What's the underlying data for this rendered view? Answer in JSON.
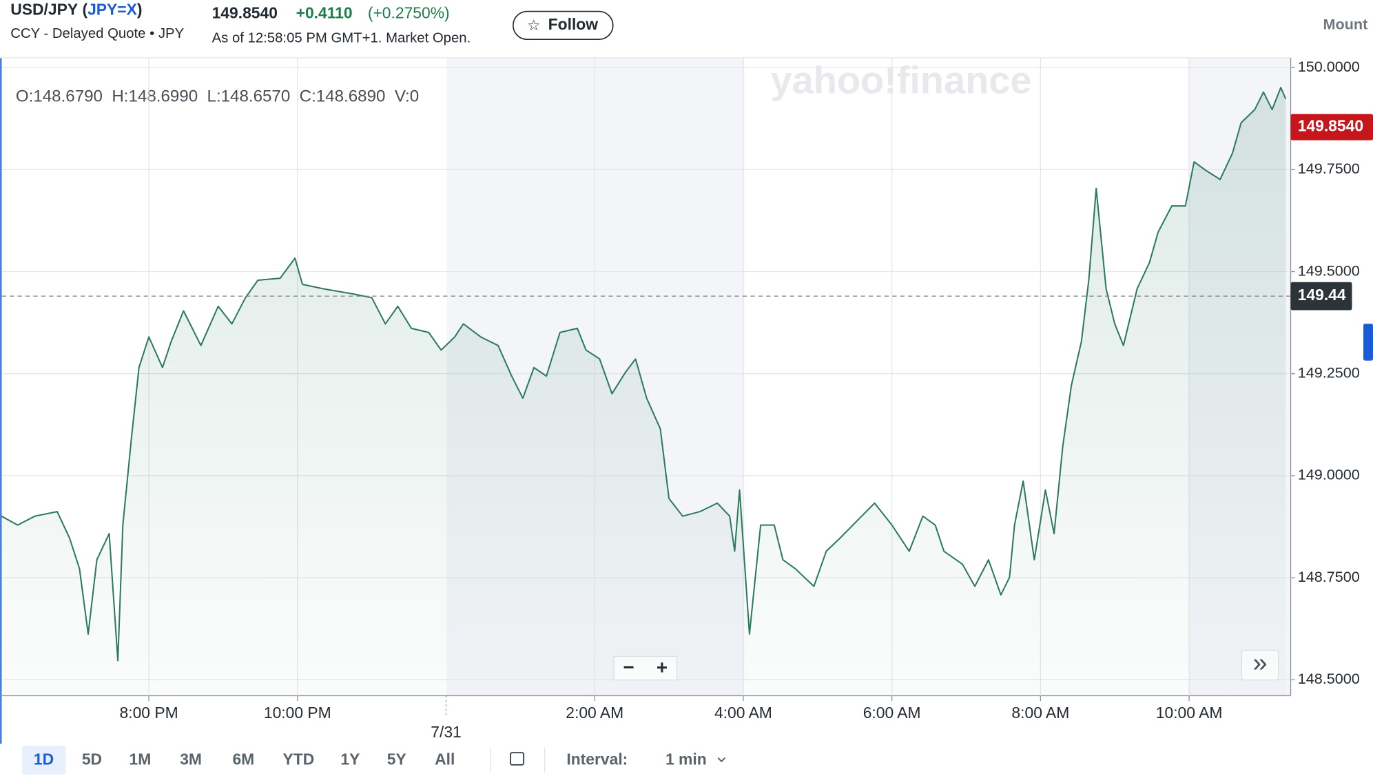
{
  "header": {
    "symbol": "USD/JPY",
    "ticker": "JPY=X",
    "open_paren": "(",
    "close_paren": ")",
    "subtitle": "CCY - Delayed Quote • JPY",
    "price": "149.8540",
    "change": "+0.4110",
    "change_pct": "(+0.2750%)",
    "as_of": "As of 12:58:05 PM GMT+1. Market Open.",
    "follow": "Follow",
    "star": "☆",
    "right_text": "Mount"
  },
  "ohlc": "O:148.6790  H:148.6990  L:148.6570  C:148.6890  V:0",
  "watermark": "yahoo!finance",
  "zoom": {
    "minus": "−",
    "plus": "+"
  },
  "next": "»",
  "ranges": [
    "1D",
    "5D",
    "1M",
    "3M",
    "6M",
    "YTD",
    "1Y",
    "5Y",
    "All"
  ],
  "interval_label": "Interval:",
  "interval": "1 min",
  "chart_data": {
    "type": "line",
    "color": "#2b7a5e",
    "grid": true,
    "x": [
      "6:01 PM",
      "6:14 PM",
      "6:28 PM",
      "6:46 PM",
      "6:56 PM",
      "7:04 PM",
      "7:11 PM",
      "7:18 PM",
      "7:28 PM",
      "7:35 PM",
      "7:39 PM",
      "7:46 PM",
      "7:52 PM",
      "8:00 PM",
      "8:11 PM",
      "8:18 PM",
      "8:28 PM",
      "8:42 PM",
      "8:56 PM",
      "9:07 PM",
      "9:18 PM",
      "9:28 PM",
      "9:46 PM",
      "9:58 PM",
      "10:04 PM",
      "10:21 PM",
      "10:42 PM",
      "11:00 PM",
      "11:11 PM",
      "11:21 PM",
      "11:32 PM",
      "11:46 PM",
      "11:56 PM",
      "12:07 AM",
      "12:14 AM",
      "12:28 AM",
      "12:42 AM",
      "12:53 AM",
      "1:02 AM",
      "1:11 AM",
      "1:21 AM",
      "1:32 AM",
      "1:46 AM",
      "1:53 AM",
      "2:04 AM",
      "2:14 AM",
      "2:25 AM",
      "2:33 AM",
      "2:42 AM",
      "2:53 AM",
      "3:00 AM",
      "3:11 AM",
      "3:25 AM",
      "3:39 AM",
      "3:49 AM",
      "3:53 AM",
      "3:57 AM",
      "4:05 AM",
      "4:14 AM",
      "4:25 AM",
      "4:32 AM",
      "4:42 AM",
      "4:57 AM",
      "5:07 AM",
      "5:18 AM",
      "5:32 AM",
      "5:46 AM",
      "6:00 AM",
      "6:14 AM",
      "6:25 AM",
      "6:35 AM",
      "6:42 AM",
      "6:57 AM",
      "7:07 AM",
      "7:18 AM",
      "7:28 AM",
      "7:35 AM",
      "7:39 AM",
      "7:46 AM",
      "7:55 AM",
      "8:04 AM",
      "8:11 AM",
      "8:18 AM",
      "8:25 AM",
      "8:33 AM",
      "8:39 AM",
      "8:45 AM",
      "8:53 AM",
      "9:00 AM",
      "9:07 AM",
      "9:18 AM",
      "9:28 AM",
      "9:35 AM",
      "9:46 AM",
      "9:57 AM",
      "10:04 AM",
      "10:14 AM",
      "10:25 AM",
      "10:35 AM",
      "10:42 AM",
      "10:53 AM",
      "11:00 AM",
      "11:07 AM",
      "11:14 AM",
      "11:18 AM"
    ],
    "values": [
      148.901,
      148.879,
      148.901,
      148.912,
      148.847,
      148.772,
      148.612,
      148.794,
      148.858,
      148.547,
      148.879,
      149.094,
      149.265,
      149.34,
      149.265,
      149.329,
      149.404,
      149.319,
      149.415,
      149.372,
      149.436,
      149.479,
      149.484,
      149.533,
      149.469,
      149.458,
      149.447,
      149.436,
      149.372,
      149.415,
      149.361,
      149.351,
      149.308,
      149.34,
      149.372,
      149.34,
      149.319,
      149.244,
      149.19,
      149.265,
      149.244,
      149.351,
      149.361,
      149.308,
      149.286,
      149.201,
      149.254,
      149.286,
      149.19,
      149.115,
      148.944,
      148.901,
      148.912,
      148.933,
      148.901,
      148.815,
      148.965,
      148.612,
      148.879,
      148.879,
      148.794,
      148.772,
      148.729,
      148.815,
      148.847,
      148.89,
      148.933,
      148.879,
      148.815,
      148.901,
      148.879,
      148.815,
      148.783,
      148.729,
      148.794,
      148.708,
      148.751,
      148.879,
      148.987,
      148.794,
      148.965,
      148.858,
      149.072,
      149.222,
      149.329,
      149.479,
      149.704,
      149.458,
      149.372,
      149.319,
      149.458,
      149.522,
      149.597,
      149.661,
      149.661,
      149.769,
      149.747,
      149.726,
      149.79,
      149.865,
      149.897,
      149.94,
      149.897,
      149.951,
      149.923
    ],
    "xticks": [
      "8:00 PM",
      "10:00 PM",
      {
        "value": "12:00 AM",
        "label": "7/31"
      },
      "2:00 AM",
      "4:00 AM",
      "6:00 AM",
      "8:00 AM",
      "10:00 AM"
    ],
    "ylim": [
      148.461,
      150.024
    ],
    "yticks": [
      {
        "value": 148.5,
        "label": "148.5000"
      },
      {
        "value": 148.75,
        "label": "148.7500"
      },
      {
        "value": 149,
        "label": "149.0000"
      },
      {
        "value": 149.25,
        "label": "149.2500"
      },
      {
        "value": 149.5,
        "label": "149.5000"
      },
      {
        "value": 149.75,
        "label": "149.7500"
      },
      {
        "value": 150,
        "label": "150.0000"
      }
    ],
    "prev_close": {
      "value": 149.44,
      "label": "149.44"
    },
    "price_tag": {
      "value": 149.854,
      "label": "149.8540"
    }
  }
}
